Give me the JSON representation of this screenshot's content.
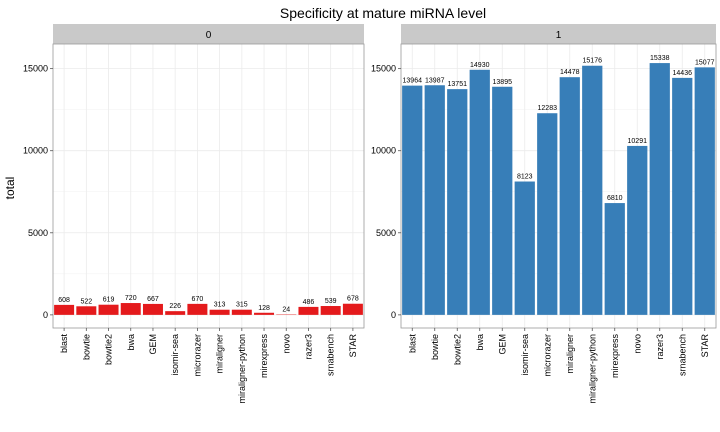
{
  "chart_data": {
    "type": "bar",
    "title": "Specificity at mature miRNA level",
    "xlabel": "",
    "ylabel": "total",
    "ylim": [
      -800,
      16500
    ],
    "yticks": [
      0,
      5000,
      10000,
      15000
    ],
    "grid": true,
    "categories": [
      "blast",
      "bowtie",
      "bowtie2",
      "bwa",
      "GEM",
      "isomir-sea",
      "microrazer",
      "miraligner",
      "miraligner-python",
      "mirexpress",
      "novo",
      "razer3",
      "srnabench",
      "STAR"
    ],
    "panels": [
      {
        "name": "0",
        "color": "#e41a1c",
        "values": [
          608,
          522,
          619,
          720,
          667,
          226,
          670,
          313,
          315,
          128,
          24,
          486,
          539,
          678
        ]
      },
      {
        "name": "1",
        "color": "#377eb8",
        "values": [
          13964,
          13987,
          13751,
          14930,
          13895,
          8123,
          12283,
          14478,
          15176,
          6810,
          10291,
          15338,
          14436,
          15077
        ]
      }
    ]
  },
  "colors": {
    "panel_bg": "#ffffff",
    "strip_bg": "#c9c9c9",
    "grid": "#ebebeb",
    "border": "#999999"
  }
}
